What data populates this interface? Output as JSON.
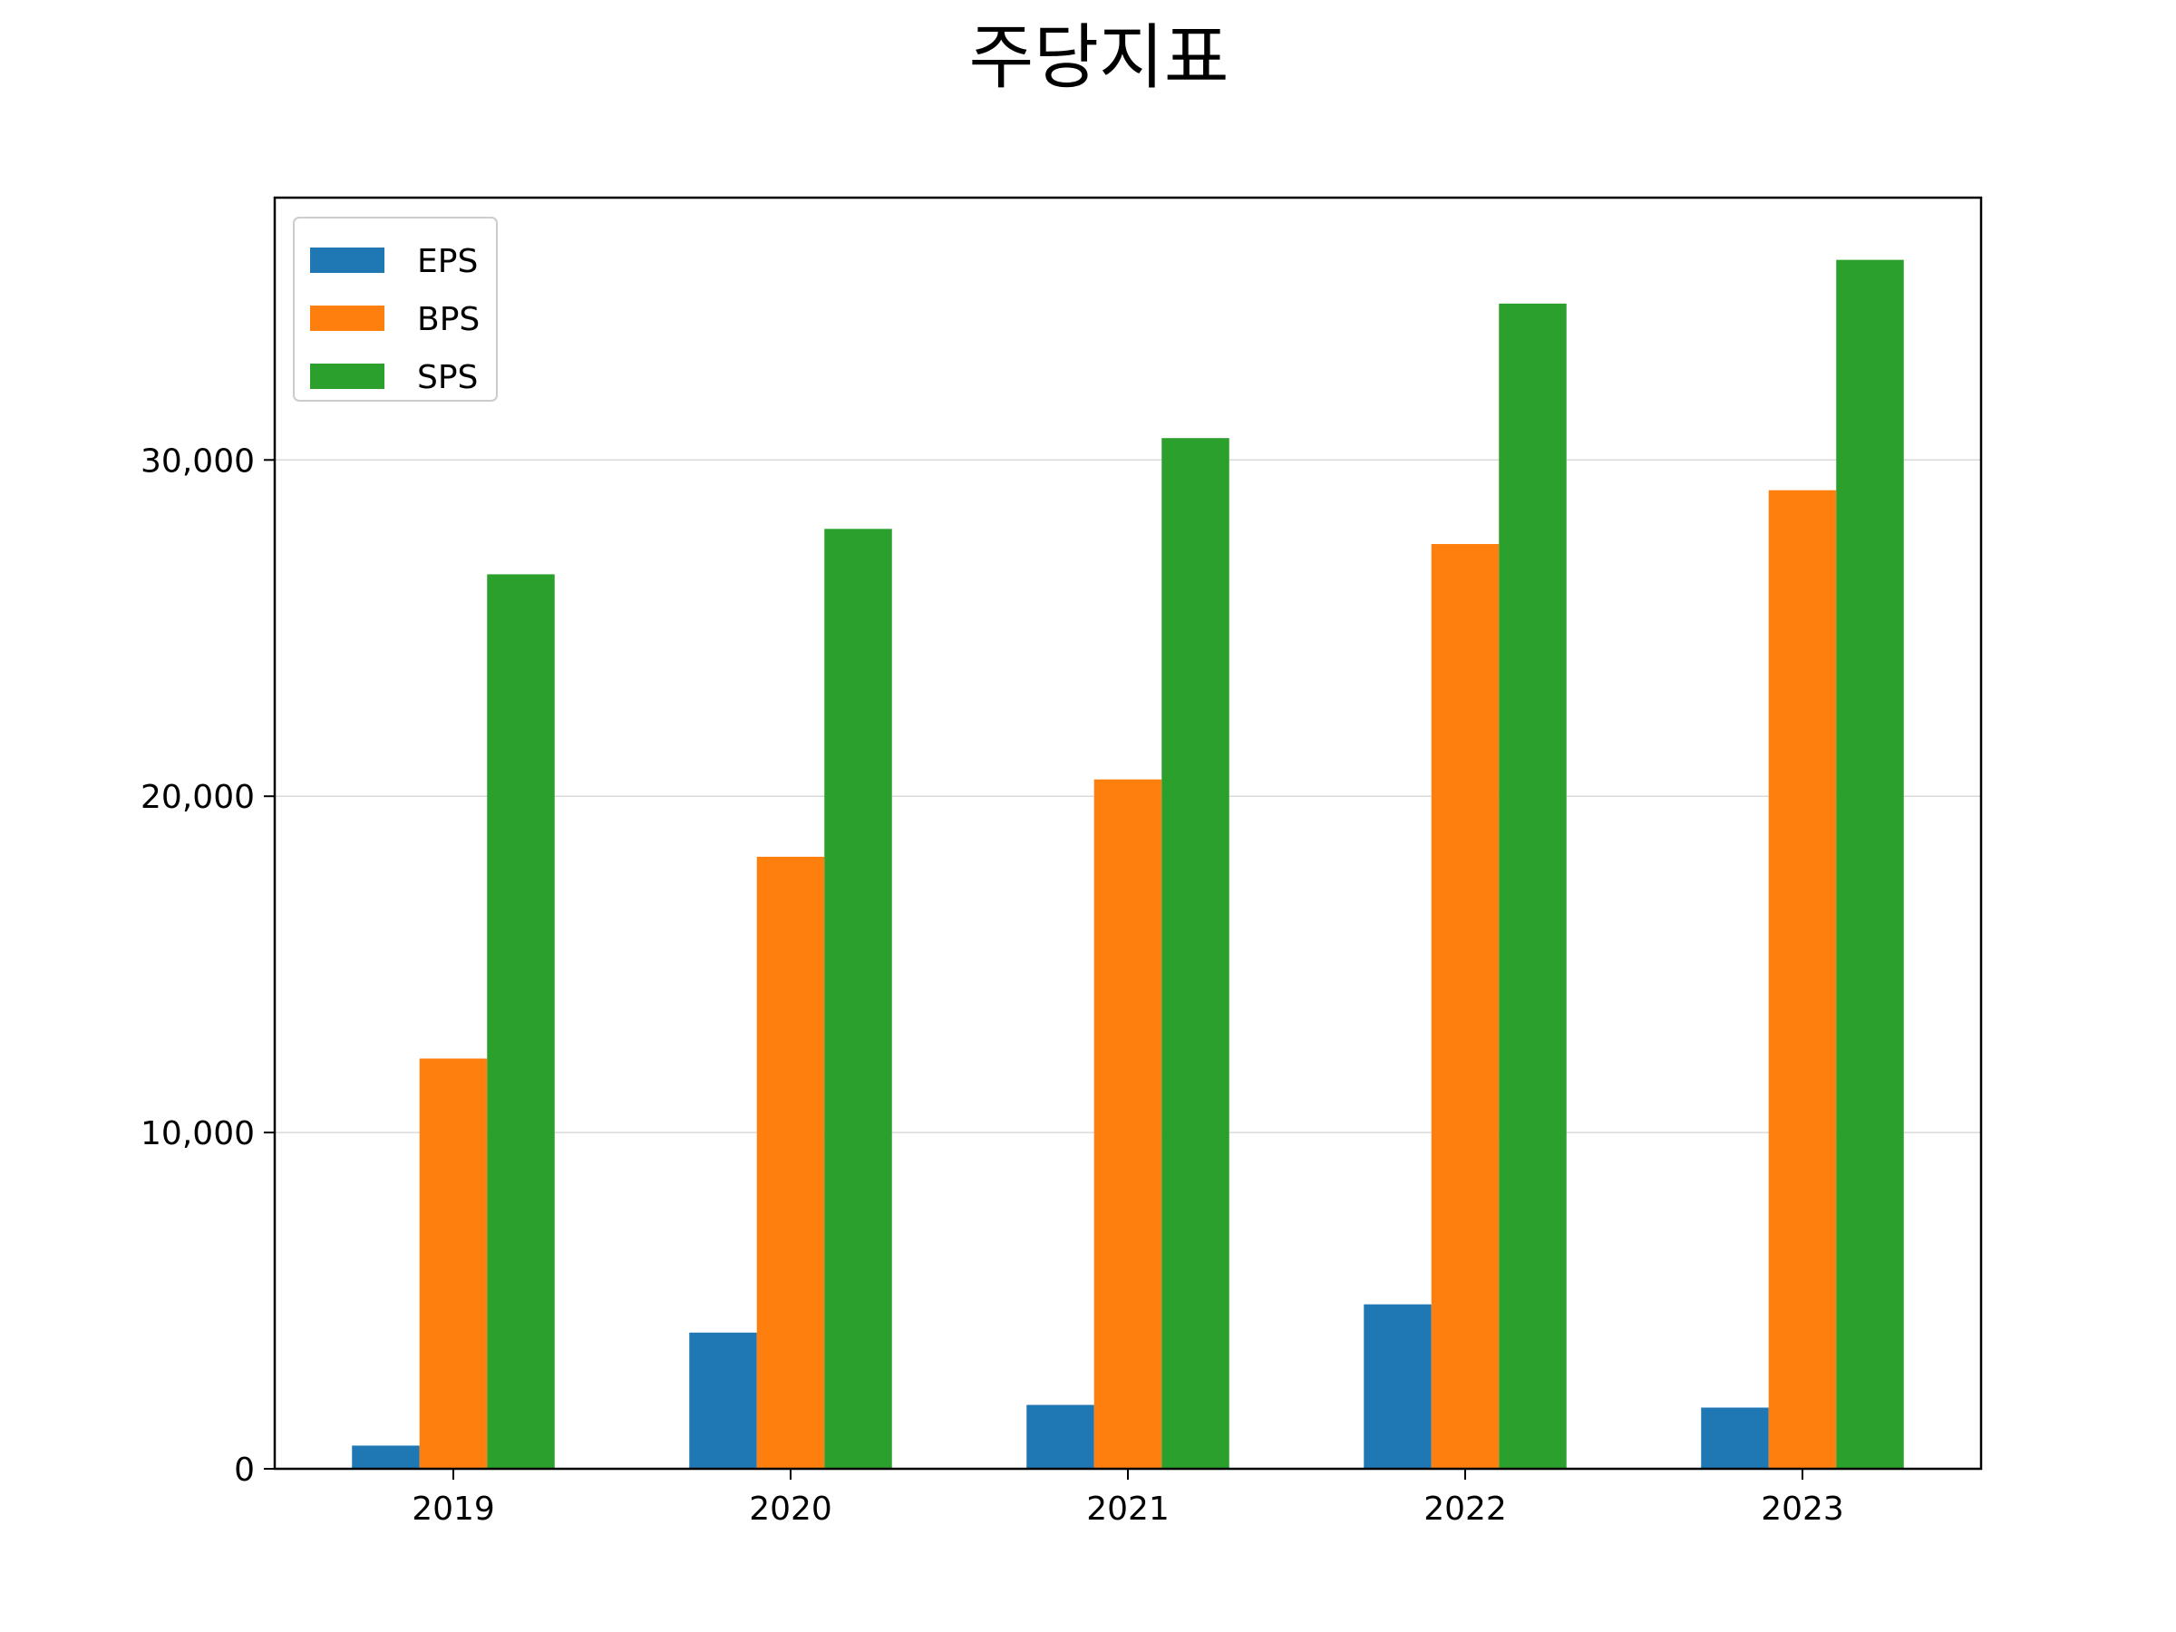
{
  "chart_data": {
    "type": "bar",
    "title": "주당지표",
    "xlabel": "",
    "ylabel": "",
    "categories": [
      "2019",
      "2020",
      "2021",
      "2022",
      "2023"
    ],
    "series": [
      {
        "name": "EPS",
        "color": "#1f77b4",
        "values": [
          690,
          4050,
          1900,
          4890,
          1820
        ]
      },
      {
        "name": "BPS",
        "color": "#ff7f0e",
        "values": [
          12200,
          18200,
          20500,
          27500,
          29100
        ]
      },
      {
        "name": "SPS",
        "color": "#2ca02c",
        "values": [
          26600,
          27950,
          30650,
          34650,
          35950
        ]
      }
    ],
    "ylim": [
      0,
      37800
    ],
    "yticks": [
      0,
      10000,
      20000,
      30000
    ],
    "ytick_labels": [
      "0",
      "10,000",
      "20,000",
      "30,000"
    ],
    "grid": "horizontal",
    "grid_color": "#d9d9d9",
    "legend_position": "top-left"
  }
}
